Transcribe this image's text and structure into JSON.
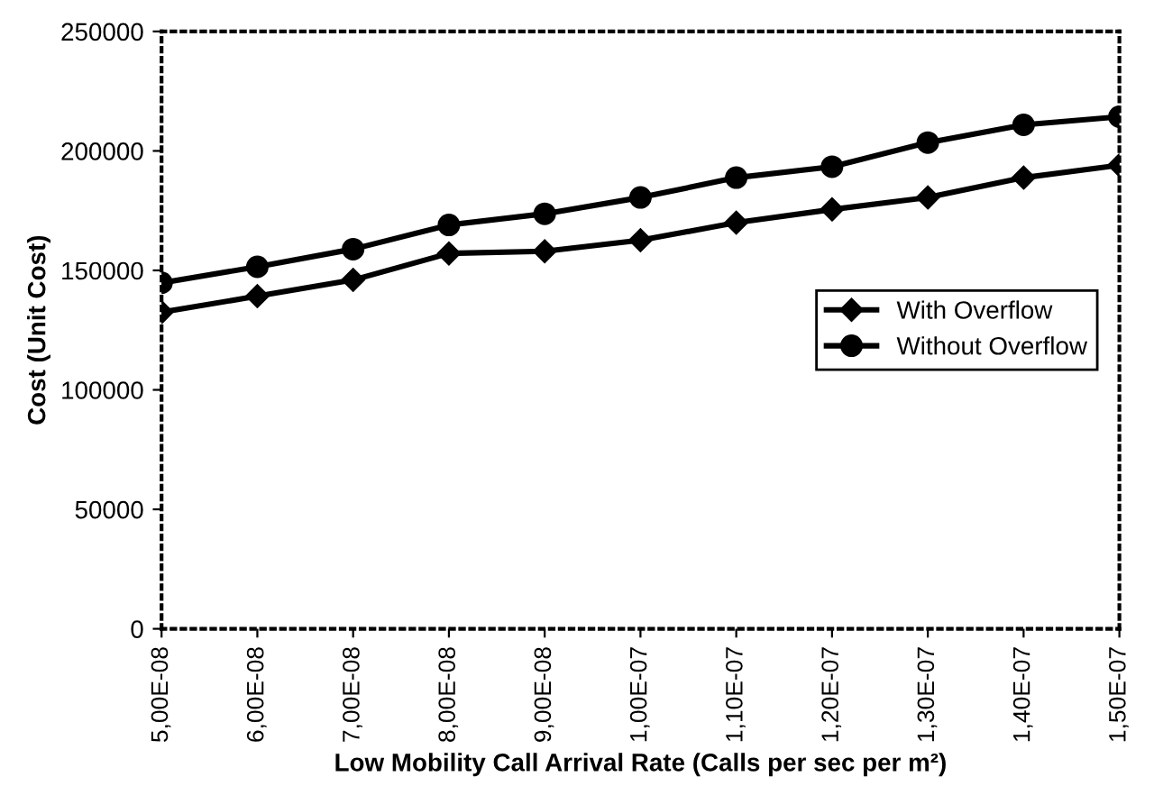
{
  "chart_data": {
    "type": "line",
    "xlabel": "Low Mobility Call Arrival Rate (Calls per sec per m²)",
    "ylabel": "Cost (Unit Cost)",
    "categories": [
      "5,00E-08",
      "6,00E-08",
      "7,00E-08",
      "8,00E-08",
      "9,00E-08",
      "1,00E-07",
      "1,10E-07",
      "1,20E-07",
      "1,30E-07",
      "1,40E-07",
      "1,50E-07"
    ],
    "series": [
      {
        "name": "With Overflow",
        "color": "#000000",
        "marker": "diamond",
        "values": [
          132500,
          139200,
          146000,
          157100,
          158000,
          162600,
          170000,
          175500,
          180500,
          188800,
          194000
        ]
      },
      {
        "name": "Without Overflow",
        "color": "#000000",
        "marker": "circle",
        "values": [
          144800,
          151500,
          158900,
          169000,
          173700,
          180500,
          188800,
          193400,
          203500,
          210900,
          214300
        ]
      }
    ],
    "ylim": [
      0,
      250000
    ],
    "yticks": [
      0,
      50000,
      100000,
      150000,
      200000,
      250000
    ],
    "grid": false,
    "legend": "center right",
    "line_style": "solid"
  }
}
